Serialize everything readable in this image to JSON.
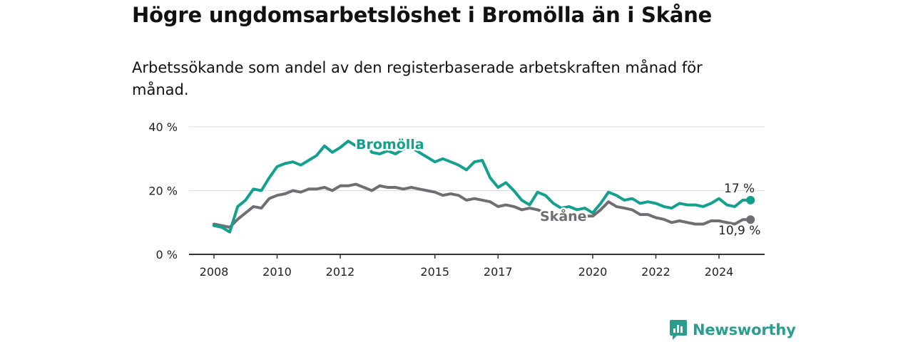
{
  "title": "Högre ungdomsarbetslöshet i Bromölla än i Skåne",
  "subtitle": "Arbetssökande som andel av den registerbaserade arbetskraften månad för månad.",
  "brand": {
    "name": "Newsworthy"
  },
  "colors": {
    "bromolla": "#13a08e",
    "skane": "#6f6f73",
    "grid": "#dddddd",
    "axis": "#333333"
  },
  "chart_data": {
    "type": "line",
    "title": "Högre ungdomsarbetslöshet i Bromölla än i Skåne",
    "xlabel": "",
    "ylabel": "",
    "xlim": [
      2008,
      2025
    ],
    "ylim": [
      0,
      40
    ],
    "y_ticks": [
      0,
      20,
      40
    ],
    "y_tick_labels": [
      "0 %",
      "20 %",
      "40 %"
    ],
    "x_ticks": [
      2008,
      2010,
      2012,
      2015,
      2017,
      2020,
      2022,
      2024
    ],
    "x_tick_labels": [
      "2008",
      "2010",
      "2012",
      "2015",
      "2017",
      "2020",
      "2022",
      "2024"
    ],
    "grid": true,
    "series": [
      {
        "name": "Bromölla",
        "color": "#13a08e",
        "end_label": "17 %",
        "points": [
          [
            2008.0,
            9
          ],
          [
            2008.25,
            8.5
          ],
          [
            2008.5,
            7
          ],
          [
            2008.75,
            15
          ],
          [
            2009.0,
            17
          ],
          [
            2009.25,
            20.5
          ],
          [
            2009.5,
            20
          ],
          [
            2009.75,
            24
          ],
          [
            2010.0,
            27.5
          ],
          [
            2010.25,
            28.5
          ],
          [
            2010.5,
            29
          ],
          [
            2010.75,
            28
          ],
          [
            2011.0,
            29.5
          ],
          [
            2011.25,
            31
          ],
          [
            2011.5,
            34
          ],
          [
            2011.75,
            32
          ],
          [
            2012.0,
            33.5
          ],
          [
            2012.25,
            35.5
          ],
          [
            2012.5,
            34
          ],
          [
            2012.75,
            36
          ],
          [
            2013.0,
            32
          ],
          [
            2013.25,
            31.5
          ],
          [
            2013.5,
            32.5
          ],
          [
            2013.75,
            31.5
          ],
          [
            2014.0,
            33
          ],
          [
            2014.25,
            33.5
          ],
          [
            2014.5,
            32
          ],
          [
            2014.75,
            30.5
          ],
          [
            2015.0,
            29
          ],
          [
            2015.25,
            30
          ],
          [
            2015.5,
            29
          ],
          [
            2015.75,
            28
          ],
          [
            2016.0,
            26.5
          ],
          [
            2016.25,
            29
          ],
          [
            2016.5,
            29.5
          ],
          [
            2016.75,
            24
          ],
          [
            2017.0,
            21
          ],
          [
            2017.25,
            22.5
          ],
          [
            2017.5,
            20
          ],
          [
            2017.75,
            17
          ],
          [
            2018.0,
            15.5
          ],
          [
            2018.25,
            19.5
          ],
          [
            2018.5,
            18.5
          ],
          [
            2018.75,
            16
          ],
          [
            2019.0,
            14.5
          ],
          [
            2019.25,
            15
          ],
          [
            2019.5,
            14
          ],
          [
            2019.75,
            14.5
          ],
          [
            2020.0,
            13
          ],
          [
            2020.25,
            16
          ],
          [
            2020.5,
            19.5
          ],
          [
            2020.75,
            18.5
          ],
          [
            2021.0,
            17
          ],
          [
            2021.25,
            17.5
          ],
          [
            2021.5,
            16
          ],
          [
            2021.75,
            16.5
          ],
          [
            2022.0,
            16
          ],
          [
            2022.25,
            15
          ],
          [
            2022.5,
            14.5
          ],
          [
            2022.75,
            16
          ],
          [
            2023.0,
            15.5
          ],
          [
            2023.25,
            15.5
          ],
          [
            2023.5,
            15
          ],
          [
            2023.75,
            16
          ],
          [
            2024.0,
            17.5
          ],
          [
            2024.25,
            15.5
          ],
          [
            2024.5,
            15
          ],
          [
            2024.75,
            17
          ],
          [
            2025.0,
            17
          ]
        ]
      },
      {
        "name": "Skåne",
        "color": "#6f6f73",
        "end_label": "10,9 %",
        "points": [
          [
            2008.0,
            9.5
          ],
          [
            2008.25,
            9
          ],
          [
            2008.5,
            8.5
          ],
          [
            2008.75,
            11
          ],
          [
            2009.0,
            13
          ],
          [
            2009.25,
            15
          ],
          [
            2009.5,
            14.5
          ],
          [
            2009.75,
            17.5
          ],
          [
            2010.0,
            18.5
          ],
          [
            2010.25,
            19
          ],
          [
            2010.5,
            20
          ],
          [
            2010.75,
            19.5
          ],
          [
            2011.0,
            20.5
          ],
          [
            2011.25,
            20.5
          ],
          [
            2011.5,
            21
          ],
          [
            2011.75,
            20
          ],
          [
            2012.0,
            21.5
          ],
          [
            2012.25,
            21.5
          ],
          [
            2012.5,
            22
          ],
          [
            2012.75,
            21
          ],
          [
            2013.0,
            20
          ],
          [
            2013.25,
            21.5
          ],
          [
            2013.5,
            21
          ],
          [
            2013.75,
            21
          ],
          [
            2014.0,
            20.5
          ],
          [
            2014.25,
            21
          ],
          [
            2014.5,
            20.5
          ],
          [
            2014.75,
            20
          ],
          [
            2015.0,
            19.5
          ],
          [
            2015.25,
            18.5
          ],
          [
            2015.5,
            19
          ],
          [
            2015.75,
            18.5
          ],
          [
            2016.0,
            17
          ],
          [
            2016.25,
            17.5
          ],
          [
            2016.5,
            17
          ],
          [
            2016.75,
            16.5
          ],
          [
            2017.0,
            15
          ],
          [
            2017.25,
            15.5
          ],
          [
            2017.5,
            15
          ],
          [
            2017.75,
            14
          ],
          [
            2018.0,
            14.5
          ],
          [
            2018.25,
            14
          ],
          [
            2018.5,
            13
          ],
          [
            2018.75,
            13
          ],
          [
            2019.0,
            12.5
          ],
          [
            2019.25,
            12.5
          ],
          [
            2019.5,
            11.5
          ],
          [
            2019.75,
            12
          ],
          [
            2020.0,
            12
          ],
          [
            2020.25,
            14
          ],
          [
            2020.5,
            16.5
          ],
          [
            2020.75,
            15
          ],
          [
            2021.0,
            14.5
          ],
          [
            2021.25,
            14
          ],
          [
            2021.5,
            12.5
          ],
          [
            2021.75,
            12.5
          ],
          [
            2022.0,
            11.5
          ],
          [
            2022.25,
            11
          ],
          [
            2022.5,
            10
          ],
          [
            2022.75,
            10.5
          ],
          [
            2023.0,
            10
          ],
          [
            2023.25,
            9.5
          ],
          [
            2023.5,
            9.5
          ],
          [
            2023.75,
            10.5
          ],
          [
            2024.0,
            10.5
          ],
          [
            2024.25,
            10
          ],
          [
            2024.5,
            9.5
          ],
          [
            2024.75,
            10.9
          ],
          [
            2025.0,
            10.9
          ]
        ]
      }
    ]
  }
}
